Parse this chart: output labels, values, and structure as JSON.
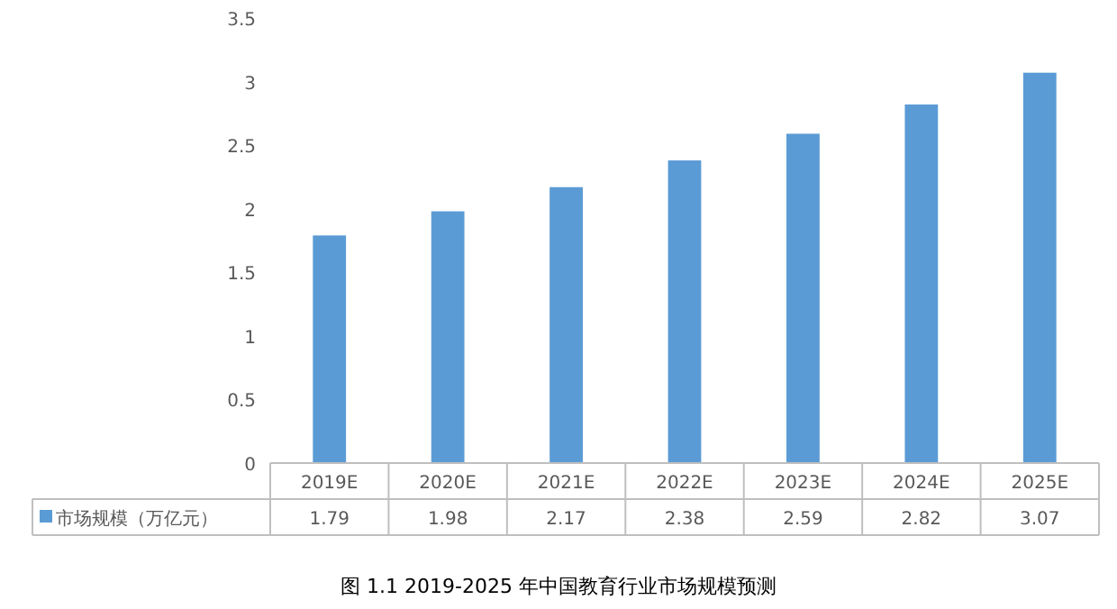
{
  "chart_data": {
    "type": "bar",
    "categories": [
      "2019E",
      "2020E",
      "2021E",
      "2022E",
      "2023E",
      "2024E",
      "2025E"
    ],
    "series": [
      {
        "name": "市场规模（万亿元）",
        "color": "#5b9bd5",
        "values": [
          1.79,
          1.98,
          2.17,
          2.38,
          2.59,
          2.82,
          3.07
        ]
      }
    ],
    "ylim": [
      0,
      3.5
    ],
    "yticks": [
      0,
      0.5,
      1,
      1.5,
      2,
      2.5,
      3,
      3.5
    ],
    "data_labels": true,
    "legend": "bottom",
    "grid": false,
    "annotations": [
      "图 1.1 2019-2025 年中国教育行业市场规模预测"
    ]
  }
}
